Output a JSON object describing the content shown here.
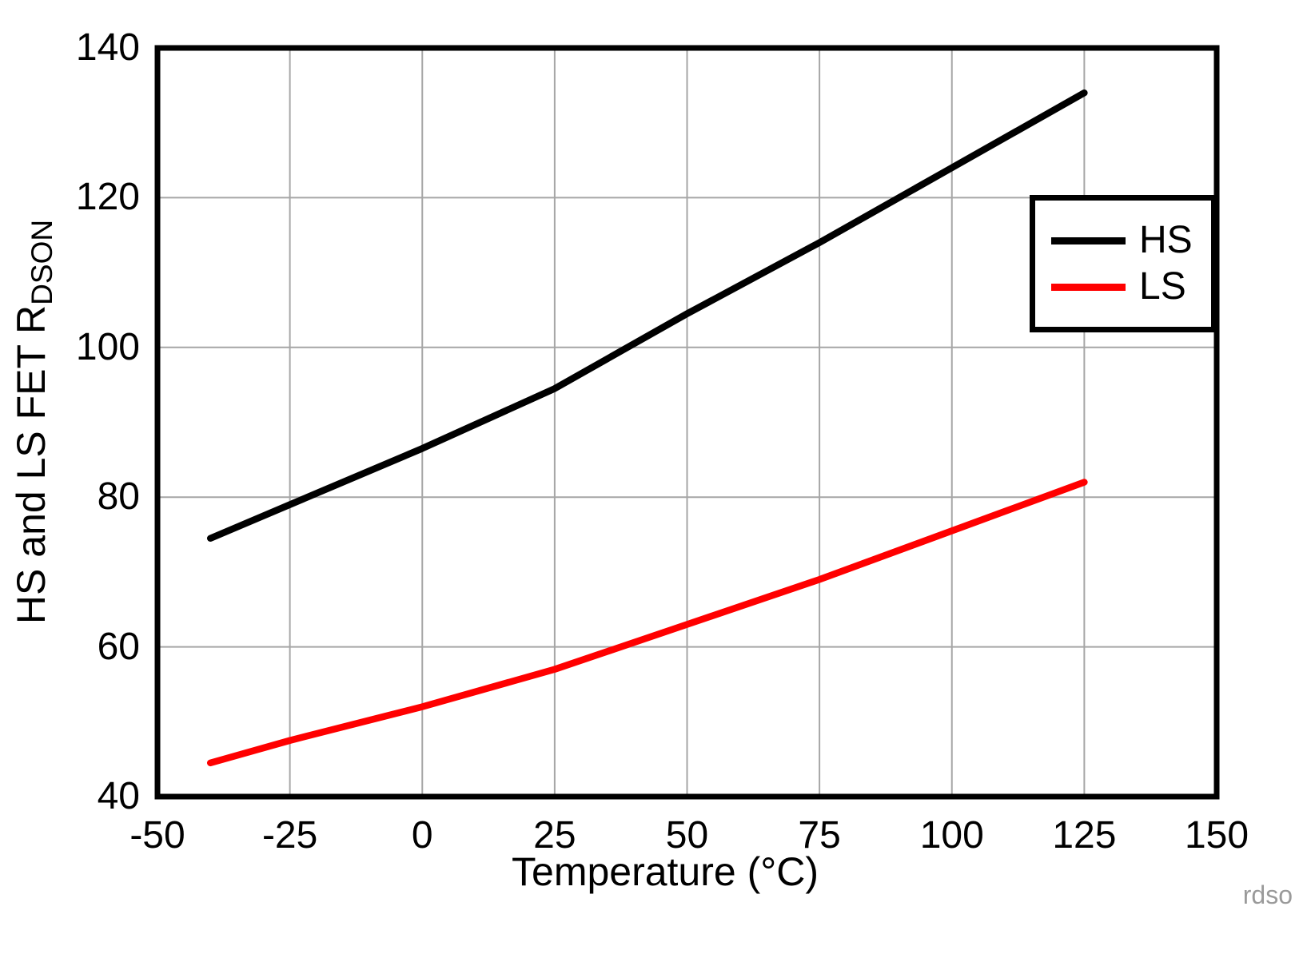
{
  "figure": {
    "watermark": "rdso",
    "background": "#ffffff",
    "frame_color": "#000000"
  },
  "chart_data": {
    "type": "line",
    "title": "",
    "xlabel": "Temperature (°C)",
    "ylabel": "HS and LS FET RDSON",
    "ylabel_main": "HS and LS FET R",
    "ylabel_sub": "DSON",
    "xlim": [
      -50,
      150
    ],
    "ylim": [
      40,
      140
    ],
    "xticks": [
      -50,
      -25,
      0,
      25,
      50,
      75,
      100,
      125,
      150
    ],
    "yticks": [
      40,
      60,
      80,
      100,
      120,
      140
    ],
    "grid": true,
    "grid_color": "#a6a6a6",
    "legend_position": "upper-right",
    "x": [
      -40,
      -25,
      0,
      25,
      50,
      75,
      100,
      125
    ],
    "series": [
      {
        "name": "HS",
        "color": "#000000",
        "values": [
          74.5,
          79,
          86.5,
          94.5,
          104.5,
          114,
          124,
          134
        ]
      },
      {
        "name": "LS",
        "color": "#ff0000",
        "values": [
          44.5,
          47.5,
          52,
          57,
          63,
          69,
          75.5,
          82
        ]
      }
    ]
  }
}
